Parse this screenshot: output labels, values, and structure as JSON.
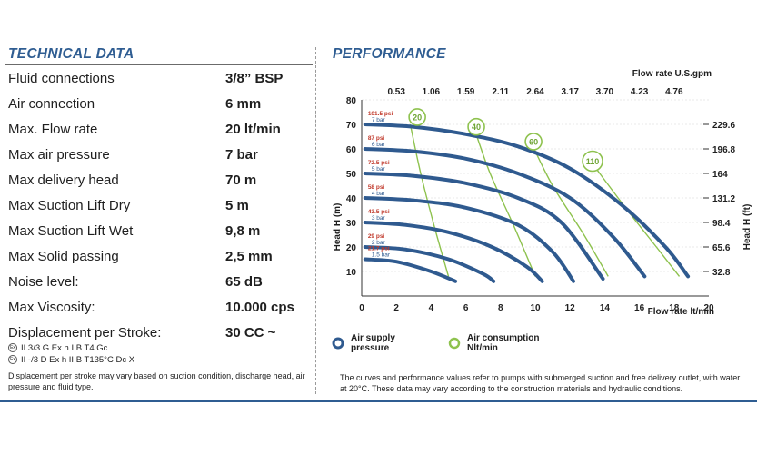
{
  "technical": {
    "title": "TECHNICAL DATA",
    "specs": [
      {
        "label": "Fluid connections",
        "value": "3/8” BSP"
      },
      {
        "label": "Air connection",
        "value": "6 mm"
      },
      {
        "label": "Max. Flow rate",
        "value": "20 lt/min"
      },
      {
        "label": "Max air pressure",
        "value": "7 bar"
      },
      {
        "label": "Max delivery head",
        "value": "70 m"
      },
      {
        "label": "Max Suction Lift Dry",
        "value": "5 m"
      },
      {
        "label": "Max Suction Lift Wet",
        "value": "9,8 m"
      },
      {
        "label": "Max Solid passing",
        "value": "2,5 mm"
      },
      {
        "label": "Noise level:",
        "value": "65 dB"
      },
      {
        "label": "Max Viscosity:",
        "value": "10.000 cps"
      },
      {
        "label": "Displacement per Stroke:",
        "value": "30 CC ~"
      }
    ],
    "certifications": [
      "II 3/3 G Ex h IIB T4 Gc",
      "II -/3 D Ex h IIIB T135°C Dc X"
    ],
    "note": "Displacement per stroke may vary based on suction condition, discharge head, air pressure and fluid type."
  },
  "performance": {
    "title": "PERFORMANCE",
    "note": "The curves and performance values refer to pumps with submerged suction and free delivery outlet, with water at 20°C. These data may vary according to the construction materials and hydraulic conditions.",
    "legend_air_supply": "Air supply pressure",
    "legend_air_consumption": "Air consumption Nlt/min"
  },
  "chart_data": {
    "type": "line",
    "xlabel": "Flow rate  lt/min",
    "ylabel": "Head H (m)",
    "top_xlabel": "Flow rate U.S.gpm",
    "right_ylabel": "Head H (ft)",
    "xlim": [
      0,
      20
    ],
    "ylim": [
      0,
      80
    ],
    "x_ticks": [
      0,
      2,
      4,
      6,
      8,
      10,
      12,
      14,
      16,
      18,
      20
    ],
    "y_ticks": [
      10,
      20,
      30,
      40,
      50,
      60,
      70,
      80
    ],
    "top_ticks": [
      {
        "label": "0.53",
        "at": 2
      },
      {
        "label": "1.06",
        "at": 4
      },
      {
        "label": "1.59",
        "at": 6
      },
      {
        "label": "2.11",
        "at": 8
      },
      {
        "label": "2.64",
        "at": 10
      },
      {
        "label": "3.17",
        "at": 12
      },
      {
        "label": "3.70",
        "at": 14
      },
      {
        "label": "4.23",
        "at": 16
      },
      {
        "label": "4.76",
        "at": 18
      }
    ],
    "right_ticks": [
      {
        "label": "229.6",
        "at": 70
      },
      {
        "label": "196.8",
        "at": 60
      },
      {
        "label": "164",
        "at": 50
      },
      {
        "label": "131.2",
        "at": 40
      },
      {
        "label": "98.4",
        "at": 30
      },
      {
        "label": "65.6",
        "at": 20
      },
      {
        "label": "32.8",
        "at": 10
      }
    ],
    "series": [
      {
        "name": "7 bar",
        "psi": "101.5 psi",
        "bar": "7 bar",
        "x": [
          0.2,
          3,
          6,
          9,
          12,
          15,
          17.5,
          18.8
        ],
        "y": [
          70,
          69,
          66,
          61,
          52,
          37,
          20,
          8
        ]
      },
      {
        "name": "6 bar",
        "psi": "87 psi",
        "bar": "6 bar",
        "x": [
          0.2,
          3,
          6,
          9,
          12,
          14.5,
          16.3
        ],
        "y": [
          60,
          59,
          56,
          50,
          40,
          24,
          8
        ]
      },
      {
        "name": "5 bar",
        "psi": "72.5 psi",
        "bar": "5 bar",
        "x": [
          0.2,
          3,
          6,
          9,
          11.5,
          13.9
        ],
        "y": [
          50,
          49,
          46,
          40,
          30,
          7
        ]
      },
      {
        "name": "4 bar",
        "psi": "58 psi",
        "bar": "4 bar",
        "x": [
          0.2,
          3,
          6,
          9,
          11,
          12.2
        ],
        "y": [
          40,
          39,
          36,
          29,
          18,
          6
        ]
      },
      {
        "name": "3 bar",
        "psi": "43.5 psi",
        "bar": "3 bar",
        "x": [
          0.2,
          2.5,
          5,
          7.5,
          9.5,
          10.4
        ],
        "y": [
          30,
          29,
          26,
          20,
          12,
          6
        ]
      },
      {
        "name": "2 bar",
        "psi": "29 psi",
        "bar": "2 bar",
        "x": [
          0.2,
          2.5,
          5,
          7,
          7.6
        ],
        "y": [
          20,
          19,
          15,
          9,
          6
        ]
      },
      {
        "name": "1.5 bar",
        "psi": "21.7 psi",
        "bar": "1.5 bar",
        "x": [
          0.2,
          2,
          4,
          5.4
        ],
        "y": [
          15,
          14,
          10,
          6
        ]
      }
    ],
    "air_consumption": [
      {
        "label": "20",
        "x": [
          2.8,
          3.4,
          4.2,
          5.0
        ],
        "y": [
          70,
          50,
          28,
          8
        ]
      },
      {
        "label": "40",
        "x": [
          6.5,
          7.4,
          8.8,
          10.0
        ],
        "y": [
          68,
          50,
          28,
          8
        ]
      },
      {
        "label": "60",
        "x": [
          9.8,
          11,
          12.8,
          14.2
        ],
        "y": [
          62,
          45,
          25,
          8
        ]
      },
      {
        "label": "110",
        "x": [
          13.5,
          15.2,
          17.2,
          18.3
        ],
        "y": [
          52,
          36,
          18,
          8
        ]
      }
    ],
    "air_bubble_labels": [
      {
        "label": "20",
        "x": 3.2,
        "y": 73
      },
      {
        "label": "40",
        "x": 6.6,
        "y": 69
      },
      {
        "label": "60",
        "x": 9.9,
        "y": 63
      },
      {
        "label": "110",
        "x": 13.3,
        "y": 55
      }
    ]
  },
  "colors": {
    "title": "#2f5d92",
    "curve": "#2f5a8f",
    "air": "#8ec24e",
    "psi": "#c0392b",
    "bar": "#2f5a8f"
  }
}
